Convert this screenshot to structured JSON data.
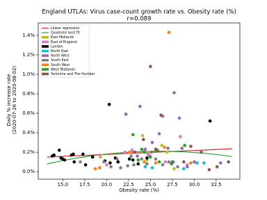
{
  "chart_data": {
    "type": "scatter",
    "title": "England UTLAs: Virus case-count growth rate vs. Obesity rate (%)",
    "subtitle": "r=0.089",
    "xlabel": "Obesity rate (%)",
    "ylabel": [
      "Daily % increase rate",
      "(2020-07-26 to 2020-08-02)"
    ],
    "xlim": [
      12.2,
      35.2
    ],
    "ylim": [
      -0.077,
      1.527
    ],
    "xticks": [
      {
        "value": 15,
        "label": "15.0"
      },
      17.5,
      {
        "value": 20,
        "label": "20.0"
      },
      22.5,
      {
        "value": 25,
        "label": "25.0"
      },
      27.5,
      {
        "value": 30,
        "label": "30.0"
      },
      32.5
    ],
    "yticks": [
      {
        "value": 0,
        "label": "0.0%"
      },
      {
        "value": 0.2,
        "label": "0.2%"
      },
      {
        "value": 0.4,
        "label": "0.4%"
      },
      {
        "value": 0.6,
        "label": "0.6%"
      },
      {
        "value": 0.8,
        "label": "0.8%"
      },
      {
        "value": 1.0,
        "label": "1.0%"
      },
      {
        "value": 1.2,
        "label": "1.2%"
      },
      {
        "value": 1.4,
        "label": "1.4%"
      }
    ],
    "legend": "upper left",
    "series": [
      {
        "name": "Linear regression",
        "color": "#d62728",
        "kind": "line",
        "x": [
          13.2,
          34.3
        ],
        "values": [
          0.15,
          0.235
        ]
      },
      {
        "name": "Quadratic best fit",
        "color": "#2ca02c",
        "kind": "line",
        "x": [
          13.2,
          15,
          17,
          19,
          21,
          23,
          25,
          27,
          29,
          31,
          33,
          34.3
        ],
        "values": [
          0.08,
          0.114,
          0.146,
          0.171,
          0.19,
          0.203,
          0.209,
          0.209,
          0.203,
          0.19,
          0.171,
          0.155
        ]
      },
      {
        "name": "East Midlands",
        "color": "#bcbd22",
        "kind": "scatter",
        "x": [
          19.3,
          24.1,
          24.8,
          26.3,
          26.9,
          27.7,
          24.6
        ],
        "values": [
          0.15,
          0.37,
          0.2,
          0.27,
          0.2,
          0.03,
          0.12
        ]
      },
      {
        "name": "East of England",
        "color": "#e377c2",
        "kind": "scatter",
        "x": [
          19.2,
          22.9,
          23.3,
          24.1,
          24.7,
          26.7,
          28.4,
          29.2,
          20.0,
          22.1
        ],
        "values": [
          0.17,
          0.22,
          0.2,
          0.21,
          0.18,
          0.1,
          0.36,
          0.07,
          0.07,
          0.2
        ]
      },
      {
        "name": "London",
        "color": "#000000",
        "kind": "scatter",
        "x": [
          13.8,
          14.0,
          14.6,
          14.8,
          15.0,
          15.2,
          16.0,
          16.2,
          16.3,
          17.3,
          17.6,
          18.4,
          19.8,
          20.3,
          20.4,
          21.0,
          21.3,
          22.6,
          23.0,
          23.6,
          31.8,
          24.6
        ],
        "values": [
          0.16,
          0.17,
          0.22,
          0.14,
          0.13,
          0.12,
          0.17,
          0.18,
          0.1,
          0.18,
          0.07,
          0.15,
          0.11,
          0.69,
          0.09,
          0.14,
          0.1,
          0.13,
          0.12,
          0.08,
          0.52,
          0.14
        ]
      },
      {
        "name": "North East",
        "color": "#17becf",
        "kind": "scatter",
        "x": [
          25.2,
          27.6,
          28.8,
          30.3,
          31.1,
          24.4
        ],
        "values": [
          0.04,
          0.1,
          0.03,
          0.09,
          0.09,
          0.05
        ]
      },
      {
        "name": "North West",
        "color": "#9467bd",
        "kind": "scatter",
        "x": [
          22.2,
          23.8,
          24.4,
          25.2,
          26.0,
          26.4,
          27.7,
          28.3,
          27.0,
          28.6,
          29.2,
          30.0,
          33.0,
          23.5,
          24.9
        ],
        "values": [
          0.59,
          0.67,
          0.23,
          0.3,
          0.39,
          0.57,
          0.81,
          0.55,
          0.24,
          0.24,
          0.05,
          0.1,
          0.09,
          0.16,
          0.16
        ]
      },
      {
        "name": "South East",
        "color": "#7f7f7f",
        "kind": "scatter",
        "x": [
          17.0,
          19.7,
          20.5,
          21.6,
          22.4,
          23.1,
          24.0,
          24.6,
          25.1,
          25.6,
          26.4,
          27.1,
          21.2,
          28.1,
          22.8
        ],
        "values": [
          0.1,
          0.1,
          0.05,
          0.04,
          0.06,
          0.07,
          0.13,
          0.08,
          0.2,
          0.13,
          0.07,
          0.1,
          0.13,
          0.05,
          0.16
        ]
      },
      {
        "name": "South West",
        "color": "#ff7f0e",
        "kind": "scatter",
        "x": [
          27.1,
          19.2,
          22.6,
          24.3,
          25.6,
          26.6,
          29.6,
          18.7
        ],
        "values": [
          1.43,
          0.04,
          0.2,
          0.1,
          0.09,
          0.25,
          0.09,
          0.03
        ]
      },
      {
        "name": "West Midlands",
        "color": "#2ca02c",
        "kind": "scatter",
        "x": [
          23.0,
          24.0,
          24.3,
          25.0,
          26.0,
          27.4,
          28.9,
          25.8,
          23.6
        ],
        "values": [
          0.38,
          0.23,
          0.2,
          0.15,
          0.1,
          0.08,
          0.27,
          0.22,
          0.12
        ]
      },
      {
        "name": "Yorkshire and The Humber",
        "color": "#8c564b",
        "kind": "scatter",
        "x": [
          25.0,
          26.2,
          25.6,
          27.5,
          28.8,
          29.6,
          30.8,
          31.7,
          32.6,
          33.9,
          24.2,
          23.2
        ],
        "values": [
          1.08,
          0.58,
          0.23,
          0.1,
          0.1,
          0.26,
          0.2,
          0.02,
          0.05,
          0.1,
          0.33,
          0.2
        ]
      }
    ]
  }
}
